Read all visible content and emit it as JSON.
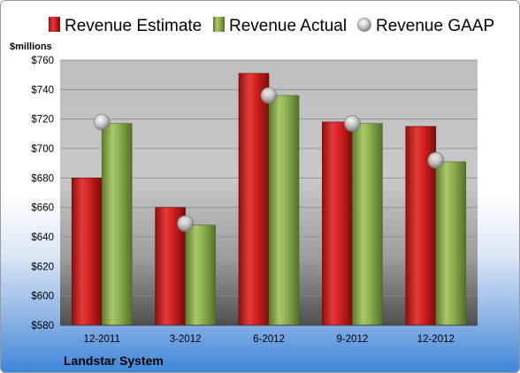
{
  "chart_data": {
    "type": "bar",
    "title": "",
    "company": "Landstar System",
    "ylabel": "$millions",
    "ylim": [
      580,
      760
    ],
    "yticks": [
      580,
      600,
      620,
      640,
      660,
      680,
      700,
      720,
      740,
      760
    ],
    "ytick_labels": [
      "$580",
      "$600",
      "$620",
      "$640",
      "$660",
      "$680",
      "$700",
      "$720",
      "$740",
      "$760"
    ],
    "categories": [
      "12-2011",
      "3-2012",
      "6-2012",
      "9-2012",
      "12-2012"
    ],
    "series": [
      {
        "name": "Revenue Estimate",
        "kind": "bar",
        "color": "#d11f1f",
        "values": [
          680,
          660,
          751,
          718,
          715
        ]
      },
      {
        "name": "Revenue Actual",
        "kind": "bar",
        "color": "#8aad4d",
        "values": [
          717,
          648,
          736,
          717,
          691
        ]
      },
      {
        "name": "Revenue GAAP",
        "kind": "marker",
        "color": "#b8b8b8",
        "values": [
          718,
          649,
          736,
          717,
          692
        ]
      }
    ],
    "grid": true,
    "legend_position": "top"
  }
}
